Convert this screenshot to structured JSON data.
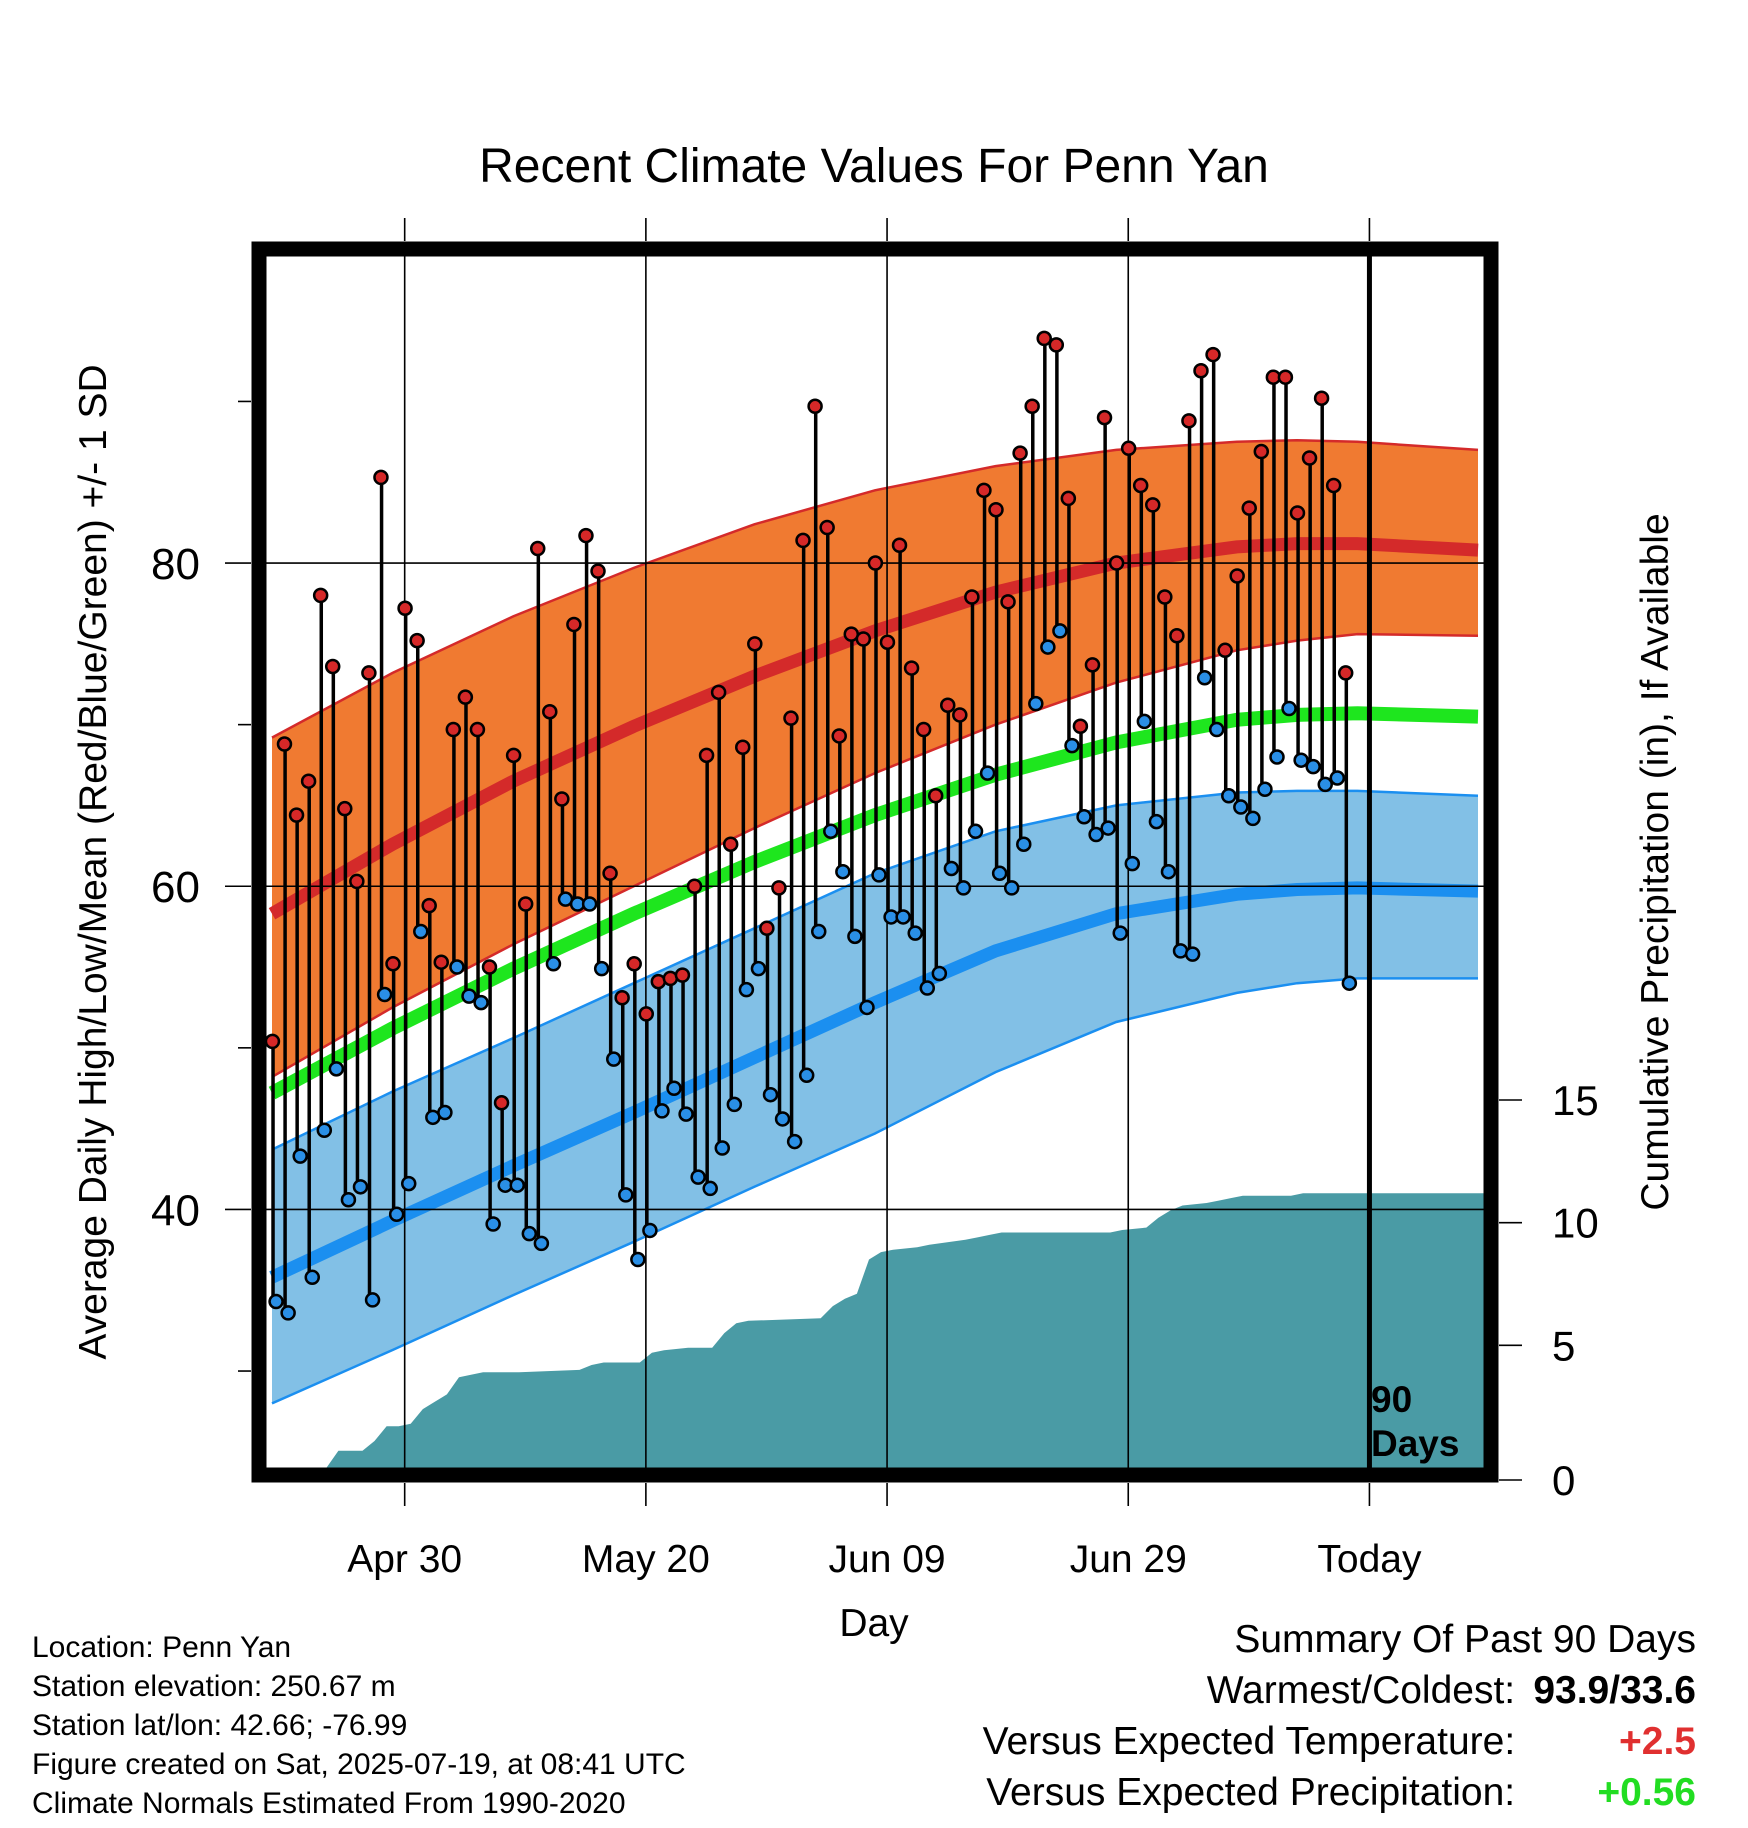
{
  "chart_data": {
    "type": "line",
    "title": "Recent Climate Values For Penn Yan",
    "xlabel": "Day",
    "ylabel_left": "Average Daily High/Low/Mean (Red/Blue/Green) +/- 1 SD",
    "ylabel_right": "Cumulative Precipitation (in), If Available",
    "x_tick_labels": [
      "Apr 30",
      "May 20",
      "Jun 09",
      "Jun 29",
      "Today"
    ],
    "x_tick_days": [
      11,
      31,
      51,
      71,
      91
    ],
    "xlim": [
      -0.5,
      100.5
    ],
    "ylim_temp": [
      24,
      99
    ],
    "y_ticks_temp": [
      40,
      60,
      80
    ],
    "y_minor_ticks_temp": [
      30,
      50,
      70,
      90
    ],
    "ylim_precip": [
      0,
      15
    ],
    "y_ticks_precip": [
      0,
      5,
      10,
      15
    ],
    "today_marker_label": [
      "90",
      "Days"
    ],
    "grid": true,
    "colors": {
      "high_band": "#f07a31",
      "high_mean": "#d42a2a",
      "low_band": "#82c0e6",
      "low_mean": "#1b8ff0",
      "mean_line": "#1ee61e",
      "precip": "#4a9ba5",
      "high_point": "#d62828",
      "low_point": "#2a8fe6"
    },
    "normals": {
      "days": [
        0,
        10,
        20,
        30,
        40,
        50,
        60,
        70,
        80,
        85,
        90,
        100
      ],
      "high_mean": [
        58.3,
        62.6,
        66.5,
        69.9,
        73.0,
        75.8,
        78.2,
        80.0,
        81.0,
        81.2,
        81.2,
        80.8
      ],
      "high_upper": [
        69.2,
        73.2,
        76.7,
        79.7,
        82.4,
        84.5,
        86.0,
        87.0,
        87.5,
        87.6,
        87.5,
        87.0
      ],
      "high_lower": [
        48.2,
        52.5,
        56.4,
        60.0,
        63.6,
        67.0,
        70.0,
        72.6,
        74.6,
        75.2,
        75.6,
        75.5
      ],
      "mean": [
        47.2,
        51.2,
        54.9,
        58.3,
        61.5,
        64.4,
        66.9,
        68.9,
        70.3,
        70.6,
        70.7,
        70.5
      ],
      "low_mean": [
        35.8,
        39.3,
        42.7,
        46.0,
        49.4,
        52.8,
        56.0,
        58.3,
        59.5,
        59.8,
        59.9,
        59.7
      ],
      "low_upper": [
        43.7,
        47.3,
        50.6,
        54.0,
        57.4,
        60.8,
        63.4,
        65.0,
        65.8,
        65.9,
        65.9,
        65.6
      ],
      "low_lower": [
        28.0,
        31.3,
        34.7,
        38.0,
        41.4,
        44.7,
        48.5,
        51.6,
        53.4,
        54.0,
        54.3,
        54.3
      ]
    },
    "daily": {
      "high": [
        50.4,
        68.8,
        64.4,
        66.5,
        78.0,
        73.6,
        64.8,
        60.3,
        73.2,
        85.3,
        55.2,
        77.2,
        75.2,
        58.8,
        55.3,
        69.7,
        71.7,
        69.7,
        55.0,
        46.6,
        68.1,
        58.9,
        80.9,
        70.8,
        65.4,
        76.2,
        81.7,
        79.5,
        60.8,
        53.1,
        55.2,
        52.1,
        54.1,
        54.3,
        54.5,
        60.0,
        68.1,
        72.0,
        62.6,
        68.6,
        75.0,
        57.4,
        59.9,
        70.4,
        81.4,
        89.7,
        82.2,
        69.3,
        75.6,
        75.3,
        80.0,
        75.1,
        81.1,
        73.5,
        69.7,
        65.6,
        71.2,
        70.6,
        77.9,
        84.5,
        83.3,
        77.6,
        86.8,
        89.7,
        93.9,
        93.5,
        84.0,
        69.9,
        73.7,
        89.0,
        80.0,
        87.1,
        84.8,
        83.6,
        77.9,
        75.5,
        88.8,
        91.9,
        92.9,
        74.6,
        79.2,
        83.4,
        86.9,
        91.5,
        91.5,
        83.1,
        86.5,
        90.2,
        84.8,
        73.2
      ],
      "low": [
        34.3,
        33.6,
        43.3,
        35.8,
        44.9,
        48.7,
        40.6,
        41.4,
        34.4,
        53.3,
        39.7,
        41.6,
        57.2,
        45.7,
        46.0,
        55.0,
        53.2,
        52.8,
        39.1,
        41.5,
        41.5,
        38.5,
        37.9,
        55.2,
        59.2,
        58.9,
        58.9,
        54.9,
        49.3,
        40.9,
        36.9,
        38.7,
        46.1,
        47.5,
        45.9,
        42.0,
        41.3,
        43.8,
        46.5,
        53.6,
        54.9,
        47.1,
        45.6,
        44.2,
        48.3,
        57.2,
        63.4,
        60.9,
        56.9,
        52.5,
        60.7,
        58.1,
        58.1,
        57.1,
        53.7,
        54.6,
        61.1,
        59.9,
        63.4,
        67.0,
        60.8,
        59.9,
        62.6,
        71.3,
        74.8,
        75.8,
        68.7,
        64.3,
        63.2,
        63.6,
        57.1,
        61.4,
        70.2,
        64.0,
        60.9,
        56.0,
        55.8,
        72.9,
        69.7,
        65.6,
        64.9,
        64.2,
        66.0,
        68.0,
        71.0,
        67.8,
        67.4,
        66.3,
        66.7,
        54.0
      ]
    },
    "precip_cumulative": {
      "days": [
        -0.5,
        4.5,
        5.5,
        7.5,
        8.5,
        9.5,
        10.5,
        11.5,
        12.5,
        13.5,
        14.5,
        15.5,
        16.5,
        17.5,
        20.5,
        25.5,
        26.5,
        27.5,
        30.5,
        31.5,
        32.5,
        34.5,
        36.5,
        37.5,
        38.5,
        39.5,
        45.5,
        46.5,
        47.5,
        48.5,
        49.5,
        50.5,
        51.5,
        53.5,
        54.5,
        57.5,
        58.5,
        59.5,
        60.5,
        69.5,
        70.5,
        72.5,
        73.5,
        74.5,
        75.5,
        77.5,
        78.5,
        79.5,
        80.5,
        84.5,
        85.5,
        86.5,
        90.5,
        100.5
      ],
      "values": [
        0,
        0,
        0.7,
        0.7,
        1.1,
        1.7,
        1.7,
        1.8,
        2.4,
        2.7,
        3.0,
        3.7,
        3.8,
        3.9,
        3.9,
        4.0,
        4.2,
        4.3,
        4.3,
        4.7,
        4.8,
        4.9,
        4.9,
        5.5,
        5.9,
        6.0,
        6.1,
        6.6,
        6.9,
        7.1,
        8.5,
        8.8,
        8.9,
        9.0,
        9.1,
        9.3,
        9.4,
        9.5,
        9.6,
        9.6,
        9.7,
        9.8,
        10.2,
        10.5,
        10.7,
        10.8,
        10.9,
        11.0,
        11.1,
        11.1,
        11.2,
        11.2,
        11.2,
        11.2
      ]
    }
  },
  "info": {
    "location": "Location: Penn Yan",
    "elevation": "Station elevation: 250.67 m",
    "latlon": "Station lat/lon: 42.66; -76.99",
    "created": "Figure created on Sat, 2025-07-19, at 08:41 UTC",
    "normals": "Climate Normals Estimated From 1990-2020"
  },
  "summary": {
    "heading": "Summary Of Past 90 Days",
    "warm_cold_label": "Warmest/Coldest:",
    "warm_cold_value": "93.9/33.6",
    "temp_label": "Versus Expected Temperature:",
    "temp_value": "+2.5",
    "temp_color": "#e03030",
    "precip_label": "Versus Expected Precipitation:",
    "precip_value": "+0.56",
    "precip_color": "#22dd22"
  }
}
